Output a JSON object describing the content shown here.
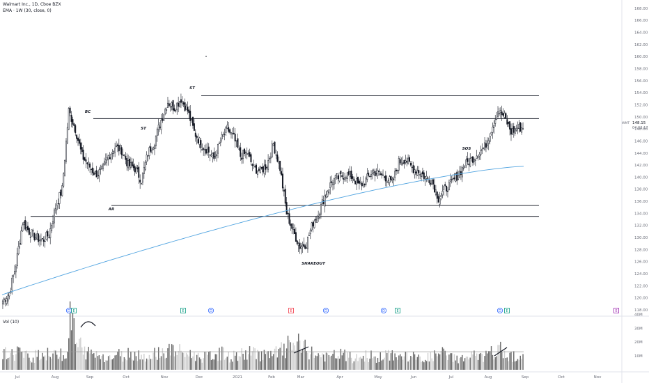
{
  "header": {
    "symbol_line": "Walmart Inc., 1D, Cboe BZX",
    "indicator_line": "EMA · 1W (30, close, 0)"
  },
  "volume_panel": {
    "label": "Vol (10)",
    "y_ticks": [
      "40M",
      "30M",
      "20M",
      "10M"
    ]
  },
  "price_axis": {
    "min": 117.3,
    "max": 168.8,
    "ticks": [
      "168.00",
      "166.00",
      "164.00",
      "162.00",
      "160.00",
      "158.00",
      "156.00",
      "154.00",
      "152.00",
      "150.00",
      "148.00",
      "146.00",
      "144.00",
      "142.00",
      "140.00",
      "138.00",
      "136.00",
      "134.00",
      "132.00",
      "130.00",
      "128.00",
      "126.00",
      "124.00",
      "122.00",
      "120.00",
      "118.00"
    ]
  },
  "last_price": {
    "ticker": "WMT",
    "value": "148.15",
    "countdown": "04:03:17",
    "color": "#131722"
  },
  "time_axis": {
    "labels": [
      "Jul",
      "Aug",
      "Sep",
      "Oct",
      "Nov",
      "Dec",
      "2021",
      "Feb",
      "Mar",
      "Apr",
      "May",
      "Jun",
      "Jul",
      "Aug",
      "Sep",
      "Oct",
      "Nov"
    ]
  },
  "annotations": [
    "BC",
    "ST",
    "ST",
    "AR",
    "SHAKEOUT",
    "SOS"
  ],
  "event_markers": [
    {
      "letter": "D",
      "color": "#2962ff"
    },
    {
      "letter": "E",
      "color": "#089981"
    },
    {
      "letter": "E",
      "color": "#089981"
    },
    {
      "letter": "D",
      "color": "#2962ff"
    },
    {
      "letter": "E",
      "color": "#f23645"
    },
    {
      "letter": "D",
      "color": "#2962ff"
    },
    {
      "letter": "D",
      "color": "#2962ff"
    },
    {
      "letter": "E",
      "color": "#089981"
    },
    {
      "letter": "D",
      "color": "#2962ff"
    },
    {
      "letter": "E",
      "color": "#089981"
    },
    {
      "letter": "E",
      "color": "#9c27b0"
    }
  ],
  "colors": {
    "candles": "#131722",
    "ema": "#4fa3e0",
    "volume": "#6b6b6b",
    "volume_ma": "#999999",
    "grid": "#ffffff",
    "axis_text": "#6a6d78"
  },
  "chart_data": {
    "type": "candlestick",
    "title": "Walmart Inc., 1D, Cboe BZX",
    "series": [
      {
        "name": "EMA · 1W (30, close, 0)",
        "type": "line"
      },
      {
        "name": "Vol (10)",
        "type": "bar"
      }
    ],
    "price_range": [
      117.3,
      168.8
    ],
    "volume_range": [
      0,
      40000000
    ],
    "weekly_close": [
      119.5,
      120.8,
      125.5,
      132.5,
      131,
      130,
      129.5,
      130.5,
      135,
      138,
      151,
      148,
      143.5,
      142,
      140.5,
      141,
      143.5,
      145,
      144.5,
      142,
      141.5,
      139.5,
      144,
      146,
      149.5,
      152.5,
      151.5,
      153,
      151,
      147.5,
      145.5,
      144.5,
      143,
      146,
      148,
      146.5,
      143.5,
      144,
      141.5,
      141,
      142,
      145.5,
      141.5,
      134,
      131,
      128.5,
      129,
      132.5,
      134.5,
      137.5,
      139.5,
      140,
      140.5,
      140,
      138.5,
      139.5,
      141,
      140.5,
      140,
      139,
      142.5,
      143,
      141.5,
      141,
      140,
      139.5,
      136.5,
      138,
      139,
      140.5,
      142,
      143,
      144,
      145,
      148,
      151,
      150,
      147.5,
      148.2
    ],
    "weekly_volume_m": [
      12,
      11,
      14,
      10,
      9,
      12,
      11,
      10,
      13,
      11,
      35,
      18,
      13,
      12,
      11,
      10,
      9,
      11,
      10,
      12,
      11,
      10,
      9,
      13,
      12,
      14,
      13,
      12,
      11,
      10,
      9,
      10,
      11,
      12,
      9,
      10,
      11,
      12,
      13,
      11,
      10,
      12,
      14,
      17,
      19,
      15,
      13,
      11,
      10,
      9,
      10,
      11,
      9,
      8,
      9,
      10,
      8,
      9,
      10,
      11,
      9,
      10,
      9,
      8,
      9,
      10,
      12,
      10,
      9,
      8,
      9,
      10,
      9,
      10,
      12,
      14,
      11,
      10,
      9
    ],
    "ema_start": 120.5,
    "ema_end": 141.8,
    "volume_ma_m": 13,
    "levels": [
      {
        "price": 153.5,
        "type": "resistance"
      },
      {
        "price": 149.7,
        "type": "resistance"
      },
      {
        "price": 135.3,
        "type": "support"
      },
      {
        "price": 133.5,
        "type": "support"
      }
    ]
  }
}
